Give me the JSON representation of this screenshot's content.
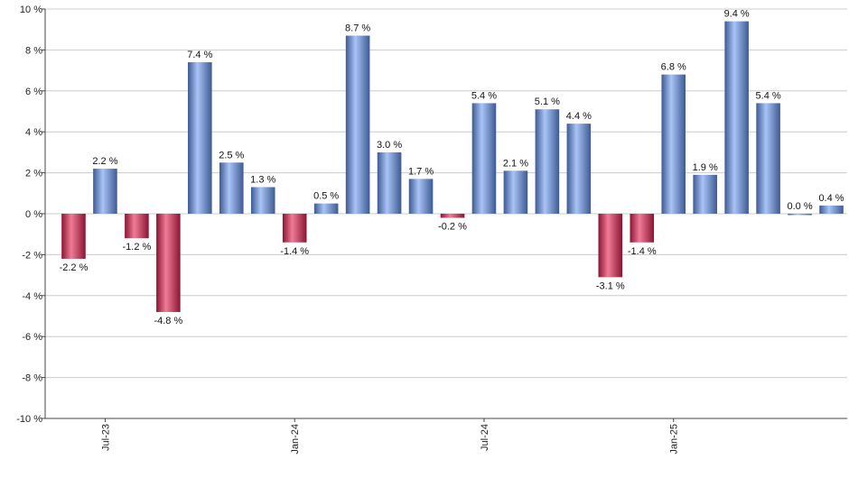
{
  "chart_data": {
    "type": "bar",
    "x": [
      "2023-06",
      "2023-07",
      "2023-08",
      "2023-09",
      "2023-10",
      "2023-11",
      "2023-12",
      "2024-01",
      "2024-02",
      "2024-03",
      "2024-04",
      "2024-05",
      "2024-06",
      "2024-07",
      "2024-08",
      "2024-09",
      "2024-10",
      "2024-11",
      "2024-12",
      "2025-01",
      "2025-02",
      "2025-03",
      "2025-04",
      "2025-05",
      "2025-06"
    ],
    "values": [
      -2.2,
      2.2,
      -1.2,
      -4.8,
      7.4,
      2.5,
      1.3,
      -1.4,
      0.5,
      8.7,
      3.0,
      1.7,
      -0.2,
      5.4,
      2.1,
      5.1,
      4.4,
      -3.1,
      -1.4,
      6.8,
      1.9,
      9.4,
      5.4,
      0.0,
      0.4
    ],
    "data_labels": [
      "-2.2 %",
      "2.2 %",
      "-1.2 %",
      "-4.8 %",
      "7.4 %",
      "2.5 %",
      "1.3 %",
      "-1.4 %",
      "0.5 %",
      "8.7 %",
      "3.0 %",
      "1.7 %",
      "-0.2 %",
      "5.4 %",
      "2.1 %",
      "5.1 %",
      "4.4 %",
      "-3.1 %",
      "-1.4 %",
      "6.8 %",
      "1.9 %",
      "9.4 %",
      "5.4 %",
      "0.0 %",
      "0.4 %"
    ],
    "ylim": [
      -10,
      10
    ],
    "yticks": [
      -10,
      -8,
      -6,
      -4,
      -2,
      0,
      2,
      4,
      6,
      8,
      10
    ],
    "ytick_labels": [
      "-10 %",
      "-8 %",
      "-6 %",
      "-4 %",
      "-2 %",
      "0 %",
      "2 %",
      "4 %",
      "6 %",
      "8 %",
      "10 %"
    ],
    "xtick_labels": [
      "Jul-23",
      "Jan-24",
      "Jul-24",
      "Jan-25"
    ],
    "xtick_positions": [
      "2023-07",
      "2024-01",
      "2024-07",
      "2025-01"
    ],
    "grid": true,
    "title": "",
    "xlabel": "",
    "ylabel": "",
    "colors": {
      "positive_light": "#a9c4f5",
      "positive_dark": "#3d5a94",
      "negative_light": "#f07b98",
      "negative_dark": "#8a1530",
      "grid": "#cccccc",
      "axis": "#444444"
    }
  }
}
